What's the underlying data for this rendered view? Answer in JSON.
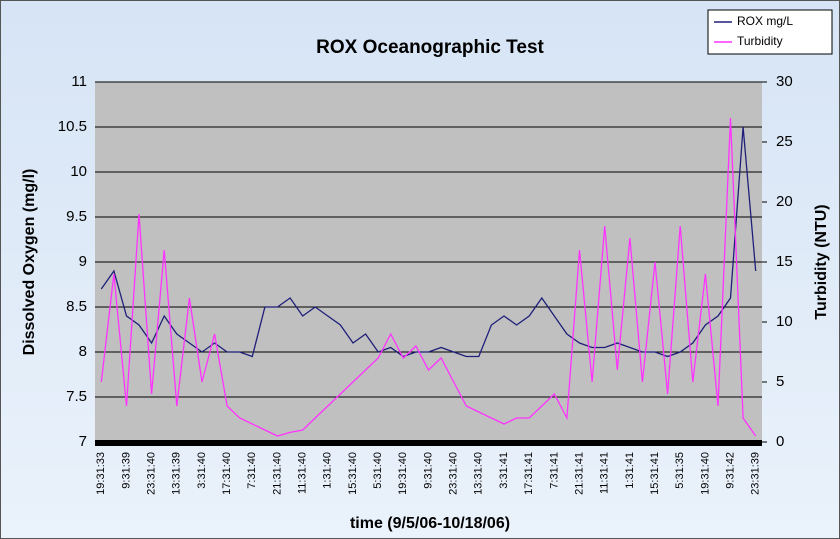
{
  "chart_data": {
    "type": "line",
    "title": "ROX Oceanographic Test",
    "xlabel": "time (9/5/06-10/18/06)",
    "ylabel": "Dissolved Oxygen (mg/l)",
    "y2label": "Turbidity (NTU)",
    "categories": [
      "19:31:33",
      null,
      "9:31:39",
      null,
      "23:31:40",
      null,
      "13:31:39",
      null,
      "3:31:40",
      null,
      "17:31:40",
      null,
      "7:31:40",
      null,
      "21:31:40",
      null,
      "11:31:40",
      null,
      "1:31:40",
      null,
      "15:31:40",
      null,
      "5:31:40",
      null,
      "19:31:40",
      null,
      "9:31:40",
      null,
      "23:31:40",
      null,
      "13:31:40",
      null,
      "3:31:41",
      null,
      "17:31:41",
      null,
      "7:31:41",
      null,
      "21:31:41",
      null,
      "11:31:41",
      null,
      "1:31:41",
      null,
      "15:31:41",
      null,
      "5:31:35",
      null,
      "19:31:40",
      null,
      "9:31:42",
      null,
      "23:31:39"
    ],
    "series": [
      {
        "name": "ROX mg/L",
        "color": "#1f1f7a",
        "axis": "y",
        "values": [
          8.7,
          8.9,
          8.4,
          8.3,
          8.1,
          8.4,
          8.2,
          8.1,
          8.0,
          8.1,
          8.0,
          8.0,
          7.95,
          8.5,
          8.5,
          8.6,
          8.4,
          8.5,
          8.4,
          8.3,
          8.1,
          8.2,
          8.0,
          8.05,
          7.95,
          8.0,
          8.0,
          8.05,
          8.0,
          7.95,
          7.95,
          8.3,
          8.4,
          8.3,
          8.4,
          8.6,
          8.4,
          8.2,
          8.1,
          8.05,
          8.05,
          8.1,
          8.05,
          8.0,
          8.0,
          7.95,
          8.0,
          8.1,
          8.3,
          8.4,
          8.6,
          10.5,
          8.9
        ]
      },
      {
        "name": "Turbidity",
        "color": "#ff33ff",
        "axis": "y2",
        "values": [
          5,
          14,
          3,
          19,
          4,
          16,
          3,
          12,
          5,
          9,
          3,
          2,
          1.5,
          1,
          0.5,
          0.8,
          1,
          2,
          3,
          4,
          5,
          6,
          7,
          9,
          7,
          8,
          6,
          7,
          5,
          3,
          2.5,
          2,
          1.5,
          2,
          2,
          3,
          4,
          2,
          16,
          5,
          18,
          6,
          17,
          5,
          15,
          4,
          18,
          5,
          14,
          3,
          27,
          2,
          0.5
        ]
      }
    ],
    "ylim": [
      7,
      11
    ],
    "yticks": [
      7,
      7.5,
      8,
      8.5,
      9,
      9.5,
      10,
      10.5,
      11
    ],
    "y2lim": [
      0,
      30
    ],
    "y2ticks": [
      0,
      5,
      10,
      15,
      20,
      25,
      30
    ],
    "grid": true,
    "legend": "top-right"
  }
}
